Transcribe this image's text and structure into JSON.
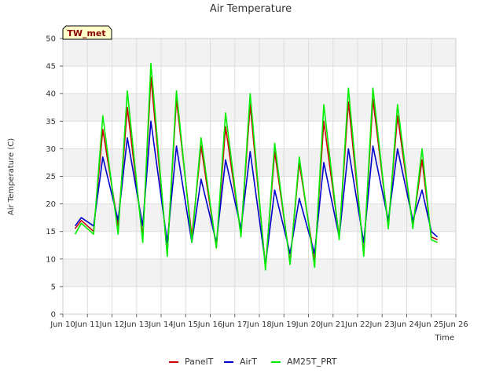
{
  "chart_data": {
    "type": "line",
    "title": "Air Temperature",
    "ylabel": "Air Temperature (C)",
    "xlabel": "Time",
    "station_label": "TW_met",
    "ylim": [
      0,
      50
    ],
    "yticks": [
      0,
      5,
      10,
      15,
      20,
      25,
      30,
      35,
      40,
      45,
      50
    ],
    "xlim": [
      "2024-06-10",
      "2024-06-26"
    ],
    "xticks": [
      "Jun 10",
      "Jun 11",
      "Jun 12",
      "Jun 13",
      "Jun 14",
      "Jun 15",
      "Jun 16",
      "Jun 17",
      "Jun 18",
      "Jun 19",
      "Jun 20",
      "Jun 21",
      "Jun 22",
      "Jun 23",
      "Jun 24",
      "Jun 25",
      "Jun 26"
    ],
    "x": [
      "2024-06-10 12:00",
      "2024-06-10 18:00",
      "2024-06-11 06:00",
      "2024-06-11 15:00",
      "2024-06-12 06:00",
      "2024-06-12 15:00",
      "2024-06-13 06:00",
      "2024-06-13 14:00",
      "2024-06-14 06:00",
      "2024-06-14 15:00",
      "2024-06-15 06:00",
      "2024-06-15 15:00",
      "2024-06-16 06:00",
      "2024-06-16 15:00",
      "2024-06-17 06:00",
      "2024-06-17 15:00",
      "2024-06-18 06:00",
      "2024-06-18 15:00",
      "2024-06-19 06:00",
      "2024-06-19 15:00",
      "2024-06-20 06:00",
      "2024-06-20 15:00",
      "2024-06-21 06:00",
      "2024-06-21 15:00",
      "2024-06-22 06:00",
      "2024-06-22 15:00",
      "2024-06-23 06:00",
      "2024-06-23 15:00",
      "2024-06-24 06:00",
      "2024-06-24 15:00",
      "2024-06-25 00:00",
      "2024-06-25 06:00"
    ],
    "series": [
      {
        "name": "PanelT",
        "color": "#cc0000",
        "values": [
          15.5,
          17,
          15,
          33.5,
          16,
          37.5,
          14,
          43,
          11,
          39,
          14,
          30.5,
          12,
          34,
          14.5,
          38,
          8.5,
          29.5,
          9.5,
          27.5,
          9.5,
          35,
          14,
          38.5,
          11,
          39,
          16,
          36,
          16,
          28,
          14,
          13.5
        ]
      },
      {
        "name": "AirT",
        "color": "#0000cc",
        "values": [
          16,
          17.5,
          16,
          28.5,
          17,
          32,
          16,
          35,
          13,
          30.5,
          13,
          24.5,
          13,
          28,
          15.5,
          29.5,
          9,
          22.5,
          11,
          21,
          11,
          27.5,
          14,
          30,
          13,
          30.5,
          17,
          30,
          17,
          22.5,
          15,
          14
        ]
      },
      {
        "name": "AM25T_PRT",
        "color": "#00ee00",
        "values": [
          14.5,
          16.5,
          14.5,
          36,
          14.5,
          40.5,
          13,
          45.5,
          10.5,
          40.5,
          13,
          32,
          12,
          36.5,
          14,
          40,
          8,
          31,
          9,
          28.5,
          8.5,
          38,
          13.5,
          41,
          10.5,
          41,
          15.5,
          38,
          15.5,
          30,
          13.5,
          13
        ]
      }
    ],
    "grid": true,
    "legend_position": "bottom-center"
  }
}
